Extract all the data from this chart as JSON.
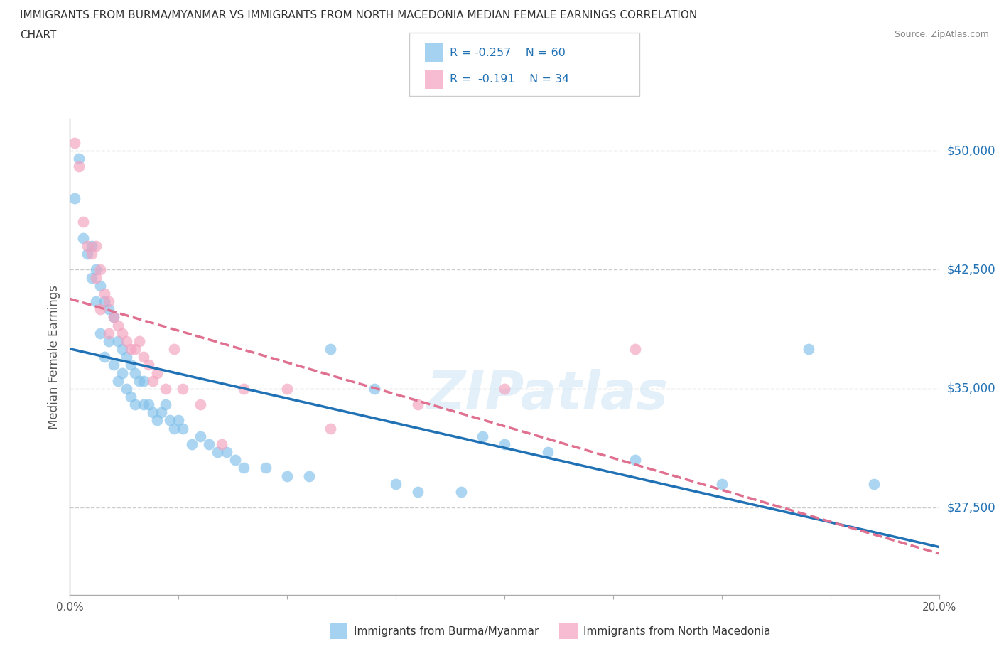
{
  "title_line1": "IMMIGRANTS FROM BURMA/MYANMAR VS IMMIGRANTS FROM NORTH MACEDONIA MEDIAN FEMALE EARNINGS CORRELATION",
  "title_line2": "CHART",
  "source": "Source: ZipAtlas.com",
  "ylabel": "Median Female Earnings",
  "xlim": [
    0.0,
    0.2
  ],
  "ylim": [
    22000,
    52000
  ],
  "yticks": [
    27500,
    35000,
    42500,
    50000
  ],
  "ytick_labels": [
    "$27,500",
    "$35,000",
    "$42,500",
    "$50,000"
  ],
  "grid_color": "#cccccc",
  "background_color": "#ffffff",
  "blue_color": "#7fbfea",
  "pink_color": "#f4a0be",
  "blue_line_color": "#2171b5",
  "pink_line_color": "#e07090",
  "R_blue": -0.257,
  "N_blue": 60,
  "R_pink": -0.191,
  "N_pink": 34,
  "legend_label_blue": "Immigrants from Burma/Myanmar",
  "legend_label_pink": "Immigrants from North Macedonia",
  "watermark": "ZIPatlas",
  "blue_x": [
    0.001,
    0.002,
    0.003,
    0.004,
    0.005,
    0.005,
    0.006,
    0.006,
    0.007,
    0.007,
    0.008,
    0.008,
    0.009,
    0.009,
    0.01,
    0.01,
    0.011,
    0.011,
    0.012,
    0.012,
    0.013,
    0.013,
    0.014,
    0.014,
    0.015,
    0.015,
    0.016,
    0.017,
    0.017,
    0.018,
    0.019,
    0.02,
    0.021,
    0.022,
    0.023,
    0.024,
    0.025,
    0.026,
    0.028,
    0.03,
    0.032,
    0.034,
    0.036,
    0.038,
    0.04,
    0.045,
    0.05,
    0.055,
    0.06,
    0.07,
    0.075,
    0.08,
    0.09,
    0.095,
    0.1,
    0.11,
    0.13,
    0.15,
    0.17,
    0.185
  ],
  "blue_y": [
    47000,
    49500,
    44500,
    43500,
    44000,
    42000,
    42500,
    40500,
    41500,
    38500,
    40500,
    37000,
    40000,
    38000,
    39500,
    36500,
    38000,
    35500,
    37500,
    36000,
    37000,
    35000,
    36500,
    34500,
    36000,
    34000,
    35500,
    35500,
    34000,
    34000,
    33500,
    33000,
    33500,
    34000,
    33000,
    32500,
    33000,
    32500,
    31500,
    32000,
    31500,
    31000,
    31000,
    30500,
    30000,
    30000,
    29500,
    29500,
    37500,
    35000,
    29000,
    28500,
    28500,
    32000,
    31500,
    31000,
    30500,
    29000,
    37500,
    29000
  ],
  "pink_x": [
    0.001,
    0.002,
    0.003,
    0.004,
    0.005,
    0.006,
    0.006,
    0.007,
    0.007,
    0.008,
    0.009,
    0.009,
    0.01,
    0.011,
    0.012,
    0.013,
    0.014,
    0.015,
    0.016,
    0.017,
    0.018,
    0.019,
    0.02,
    0.022,
    0.024,
    0.026,
    0.03,
    0.035,
    0.04,
    0.05,
    0.06,
    0.08,
    0.1,
    0.13
  ],
  "pink_y": [
    50500,
    49000,
    45500,
    44000,
    43500,
    44000,
    42000,
    42500,
    40000,
    41000,
    40500,
    38500,
    39500,
    39000,
    38500,
    38000,
    37500,
    37500,
    38000,
    37000,
    36500,
    35500,
    36000,
    35000,
    37500,
    35000,
    34000,
    31500,
    35000,
    35000,
    32500,
    34000,
    35000,
    37500
  ]
}
